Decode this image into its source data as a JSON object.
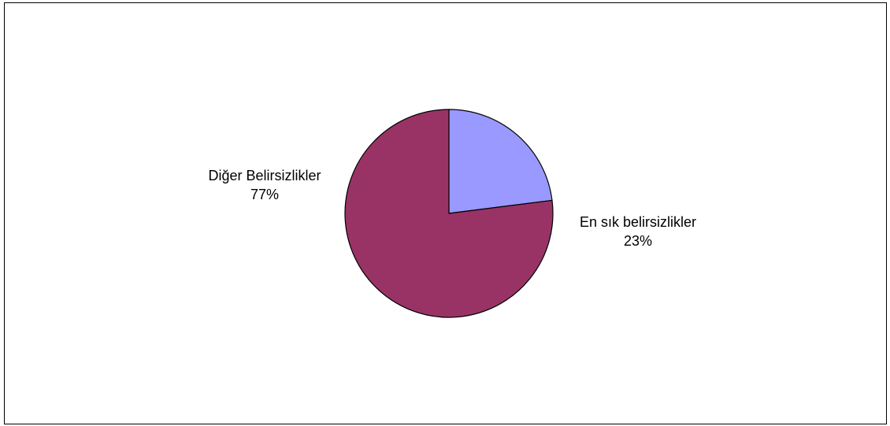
{
  "chart_data": {
    "type": "pie",
    "title": "",
    "slices": [
      {
        "label": "En sık belirsizlikler",
        "value": 23,
        "display_value": "23%",
        "color": "#9999ff"
      },
      {
        "label": "Diğer Belirsizlikler",
        "value": 77,
        "display_value": "77%",
        "color": "#993366"
      }
    ],
    "legend": "none",
    "start_angle_deg": 0,
    "direction": "clockwise"
  }
}
